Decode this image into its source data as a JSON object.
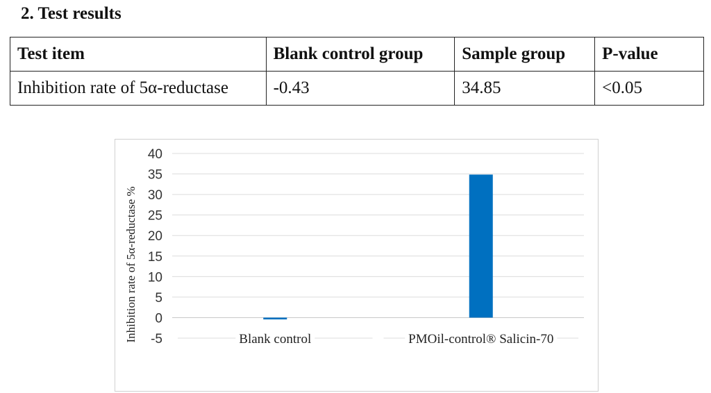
{
  "heading": "2.  Test results",
  "table": {
    "headers": [
      "Test item",
      "Blank control group",
      "Sample group",
      "P-value"
    ],
    "rows": [
      [
        "Inhibition rate of 5α-reductase",
        "-0.43",
        "34.85",
        "<0.05"
      ]
    ]
  },
  "chart_data": {
    "type": "bar",
    "categories": [
      "Blank control",
      "PMOil-control® Salicin-70"
    ],
    "values": [
      -0.43,
      34.85
    ],
    "title": "",
    "xlabel": "",
    "ylabel": "Inhibition rate of 5α-reductase %",
    "ylim": [
      -5,
      40
    ],
    "yticks": [
      40,
      35,
      30,
      25,
      20,
      15,
      10,
      5,
      0,
      -5
    ],
    "grid": true,
    "bar_color": "#0070c0"
  }
}
